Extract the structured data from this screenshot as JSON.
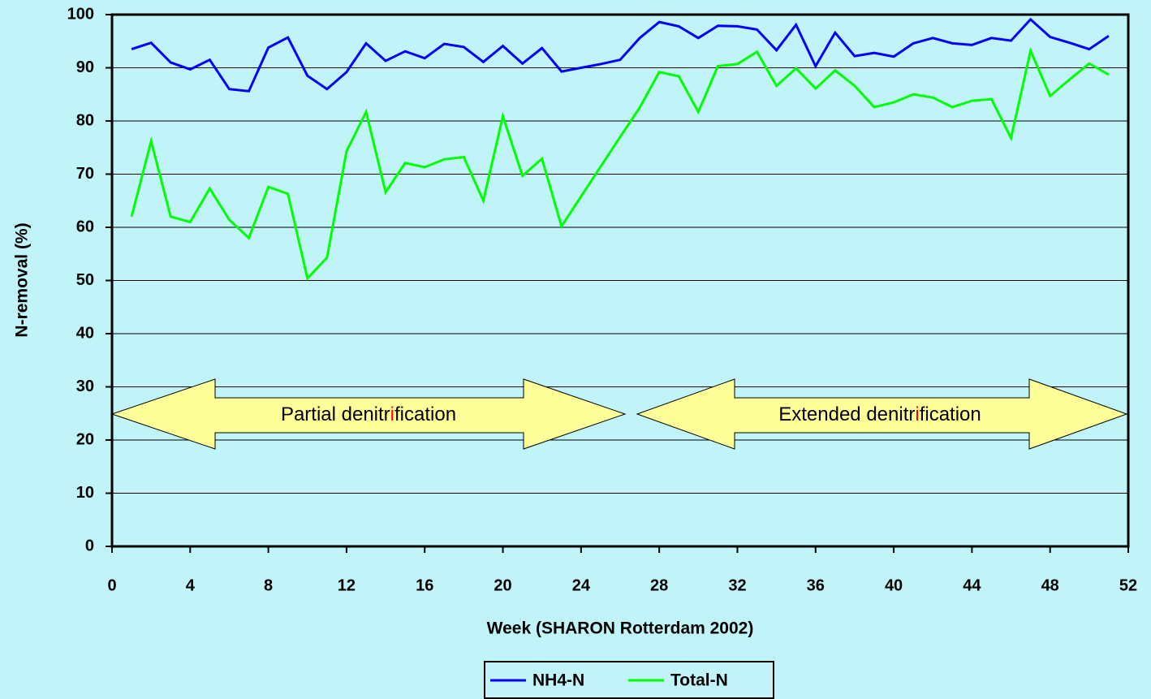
{
  "chart_data": {
    "type": "line",
    "xlabel": "Week (SHARON Rotterdam 2002)",
    "ylabel": "N-removal (%)",
    "x": [
      1,
      2,
      3,
      4,
      5,
      6,
      7,
      8,
      9,
      10,
      11,
      12,
      13,
      14,
      15,
      16,
      17,
      18,
      19,
      20,
      21,
      22,
      23,
      24,
      25,
      26,
      27,
      28,
      29,
      30,
      31,
      32,
      33,
      34,
      35,
      36,
      37,
      38,
      39,
      40,
      41,
      42,
      43,
      44,
      45,
      46,
      47,
      48,
      49,
      50,
      51
    ],
    "series": [
      {
        "name": "NH4-N",
        "color": "#0000ff",
        "values": [
          93.5,
          94.7,
          91,
          89.7,
          91.5,
          86,
          85.6,
          93.8,
          95.7,
          88.5,
          86,
          89.2,
          94.6,
          91.3,
          93.1,
          91.8,
          94.5,
          93.9,
          91.1,
          94.1,
          90.8,
          93.7,
          89.3,
          90,
          90.7,
          91.5,
          95.6,
          98.6,
          97.8,
          95.6,
          97.9,
          97.8,
          97.2,
          93.3,
          98.1,
          90.3,
          96.6,
          92.2,
          92.8,
          92.1,
          94.6,
          95.6,
          94.6,
          94.3,
          95.6,
          95.1,
          99.1,
          95.8,
          94.7,
          93.5,
          96
        ]
      },
      {
        "name": "Total-N",
        "color": "#00ff00",
        "values": [
          62,
          76.2,
          62,
          61,
          67.3,
          61.4,
          58,
          67.6,
          66.3,
          50.4,
          54.3,
          74.3,
          81.7,
          66.6,
          72.1,
          71.3,
          72.8,
          73.2,
          65,
          80.9,
          69.7,
          72.9,
          60.2,
          65.8,
          71.4,
          77,
          82.5,
          89.2,
          88.4,
          81.7,
          90.3,
          90.7,
          93,
          86.6,
          89.9,
          86.1,
          89.5,
          86.6,
          82.6,
          83.5,
          85,
          84.4,
          82.6,
          83.8,
          84.1,
          76.8,
          93.2,
          84.7,
          87.8,
          90.8,
          88.7
        ]
      }
    ],
    "xlim": [
      0,
      52
    ],
    "xticks": [
      0,
      4,
      8,
      12,
      16,
      20,
      24,
      28,
      32,
      36,
      40,
      44,
      48,
      52
    ],
    "ylim": [
      0,
      100
    ],
    "yticks": [
      0,
      10,
      20,
      30,
      40,
      50,
      60,
      70,
      80,
      90,
      100
    ],
    "grid": true,
    "legend": "bottom",
    "annotations": [
      {
        "parts": [
          "Partial denitr",
          "i",
          "fication"
        ],
        "highlight_color": "#ff0000"
      },
      {
        "parts": [
          "Extended denitr",
          "i",
          "fication"
        ],
        "highlight_color": "#ff0000"
      }
    ]
  }
}
